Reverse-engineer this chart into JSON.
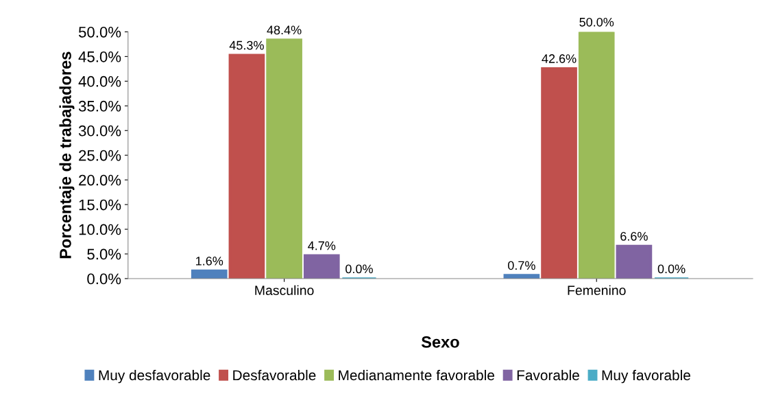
{
  "chart_data": {
    "type": "bar",
    "xlabel": "Sexo",
    "ylabel": "Porcentaje de trabajadores",
    "categories": [
      "Masculino",
      "Femenino"
    ],
    "series": [
      {
        "name": "Muy desfavorable",
        "color": "#4f81bd",
        "values": [
          1.6,
          0.7
        ],
        "value_labels": [
          "1.6%",
          "0.7%"
        ]
      },
      {
        "name": "Desfavorable",
        "color": "#c0504d",
        "values": [
          45.3,
          42.6
        ],
        "value_labels": [
          "45.3%",
          "42.6%"
        ]
      },
      {
        "name": "Medianamente favorable",
        "color": "#9bbb59",
        "values": [
          48.4,
          50.0
        ],
        "value_labels": [
          "48.4%",
          "50.0%"
        ]
      },
      {
        "name": "Favorable",
        "color": "#8064a2",
        "values": [
          4.7,
          6.6
        ],
        "value_labels": [
          "4.7%",
          "6.6%"
        ]
      },
      {
        "name": "Muy favorable",
        "color": "#4bacc6",
        "values": [
          0.0,
          0.0
        ],
        "value_labels": [
          "0.0%",
          "0.0%"
        ]
      }
    ],
    "ylim": [
      0,
      50
    ],
    "yticks": [
      {
        "value": 0,
        "label": "0.0%"
      },
      {
        "value": 5,
        "label": "5.0%"
      },
      {
        "value": 10,
        "label": "10.0%"
      },
      {
        "value": 15,
        "label": "15.0%"
      },
      {
        "value": 20,
        "label": "20.0%"
      },
      {
        "value": 25,
        "label": "25.0%"
      },
      {
        "value": 30,
        "label": "30.0%"
      },
      {
        "value": 35,
        "label": "35.0%"
      },
      {
        "value": 40,
        "label": "40.0%"
      },
      {
        "value": 45,
        "label": "45.0%"
      },
      {
        "value": 50,
        "label": "50.0%"
      }
    ],
    "grid": false,
    "legend": "bottom"
  }
}
